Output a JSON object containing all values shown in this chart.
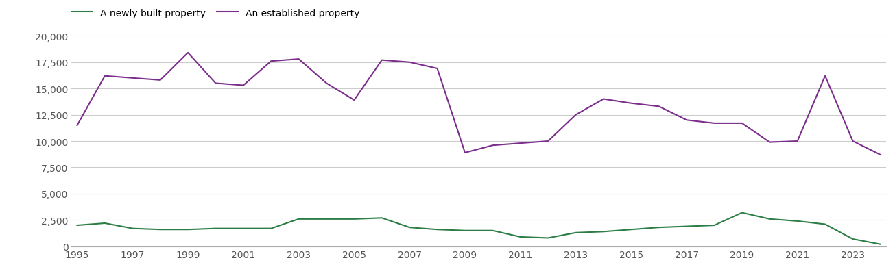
{
  "years": [
    1995,
    1996,
    1997,
    1998,
    1999,
    2000,
    2001,
    2002,
    2003,
    2004,
    2005,
    2006,
    2007,
    2008,
    2009,
    2010,
    2011,
    2012,
    2013,
    2014,
    2015,
    2016,
    2017,
    2018,
    2019,
    2020,
    2021,
    2022,
    2023,
    2024
  ],
  "newly_built": [
    2000,
    2200,
    1700,
    1600,
    1600,
    1700,
    1700,
    1700,
    2600,
    2600,
    2600,
    2700,
    1800,
    1600,
    1500,
    1500,
    900,
    800,
    1300,
    1400,
    1600,
    1800,
    1900,
    2000,
    3200,
    2600,
    2400,
    2100,
    700,
    200
  ],
  "established": [
    11500,
    16200,
    16000,
    15800,
    18400,
    15500,
    15300,
    17600,
    17800,
    15500,
    13900,
    17700,
    17500,
    16900,
    8900,
    9600,
    9800,
    10000,
    12500,
    14000,
    13600,
    13300,
    12000,
    11700,
    11700,
    9900,
    10000,
    16200,
    10000,
    8700
  ],
  "newly_built_color": "#2d7d46",
  "established_color": "#7b2d8b",
  "legend_labels": [
    "A newly built property",
    "An established property"
  ],
  "ylim": [
    0,
    20000
  ],
  "yticks": [
    0,
    2500,
    5000,
    7500,
    10000,
    12500,
    15000,
    17500,
    20000
  ],
  "xticks": [
    1995,
    1997,
    1999,
    2001,
    2003,
    2005,
    2007,
    2009,
    2011,
    2013,
    2015,
    2017,
    2019,
    2021,
    2023
  ],
  "background_color": "#ffffff",
  "grid_color": "#cccccc",
  "linewidth": 1.5,
  "tick_fontsize": 10,
  "legend_fontsize": 10
}
